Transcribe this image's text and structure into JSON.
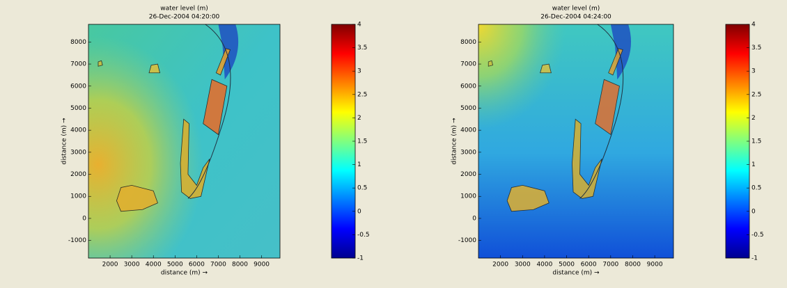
{
  "chart_data": [
    {
      "type": "heatmap",
      "title": "water level (m)",
      "subtitle": "26-Dec-2004 04:20:00",
      "xlabel": "distance (m) →",
      "ylabel": "distance (m) →",
      "xlim": [
        1000,
        9850
      ],
      "xticks": [
        2000,
        3000,
        4000,
        5000,
        6000,
        7000,
        8000,
        9000
      ],
      "ylim": [
        -1800,
        8800
      ],
      "yticks": [
        -1000,
        0,
        1000,
        2000,
        3000,
        4000,
        5000,
        6000,
        7000,
        8000
      ],
      "colormap": "jet",
      "clim": [
        -1,
        4
      ],
      "cticks": [
        -1,
        -0.5,
        0,
        0.5,
        1,
        1.5,
        2,
        2.5,
        3,
        3.5,
        4
      ]
    },
    {
      "type": "heatmap",
      "title": "water level (m)",
      "subtitle": "26-Dec-2004 04:24:00",
      "xlabel": "distance (m) →",
      "ylabel": "distance (m) →",
      "xlim": [
        1000,
        9850
      ],
      "xticks": [
        2000,
        3000,
        4000,
        5000,
        6000,
        7000,
        8000,
        9000
      ],
      "ylim": [
        -1800,
        8800
      ],
      "yticks": [
        -1000,
        0,
        1000,
        2000,
        3000,
        4000,
        5000,
        6000,
        7000,
        8000
      ],
      "colormap": "jet",
      "clim": [
        -1,
        4
      ],
      "cticks": [
        -1,
        -0.5,
        0,
        0.5,
        1,
        1.5,
        2,
        2.5,
        3,
        3.5,
        4
      ]
    }
  ]
}
